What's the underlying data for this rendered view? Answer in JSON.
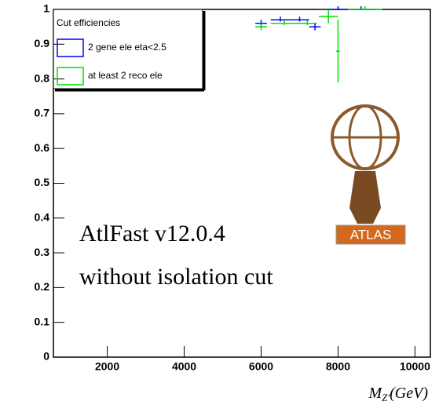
{
  "chart_data": {
    "type": "errorbar",
    "legend_title": "Cut efficiencies",
    "annotations": [
      "AtlFast v12.0.4",
      "without isolation cut"
    ],
    "logo_text": "ATLAS",
    "xlabel_main": "M",
    "xlabel_sub": "Z'",
    "xlabel_unit": "(GeV)",
    "xlim": [
      600,
      10400
    ],
    "ylim": [
      0,
      1
    ],
    "xticks": [
      2000,
      4000,
      6000,
      8000,
      10000
    ],
    "yticks": [
      0,
      0.1,
      0.2,
      0.3,
      0.4,
      0.5,
      0.6,
      0.7,
      0.8,
      0.9,
      1
    ],
    "series": [
      {
        "name": "2 gene ele eta<2.5",
        "color": "#0000ff",
        "x": [
          6000,
          6500,
          7000,
          7400,
          8000,
          8600
        ],
        "xerr": [
          150,
          250,
          250,
          150,
          250,
          350
        ],
        "values": [
          0.96,
          0.97,
          0.97,
          0.95,
          1.0,
          1.0
        ],
        "yerr": [
          0.01,
          0.005,
          0.005,
          0.01,
          0,
          0
        ]
      },
      {
        "name": "at least 2 reco ele",
        "color": "#00e000",
        "x": [
          6000,
          6600,
          7200,
          7750,
          8000,
          8700
        ],
        "xerr": [
          150,
          350,
          250,
          250,
          50,
          450
        ],
        "values": [
          0.95,
          0.96,
          0.96,
          0.98,
          0.88,
          1.0
        ],
        "yerr": [
          0.01,
          0.005,
          0.005,
          0.02,
          0.09,
          0
        ]
      }
    ]
  }
}
